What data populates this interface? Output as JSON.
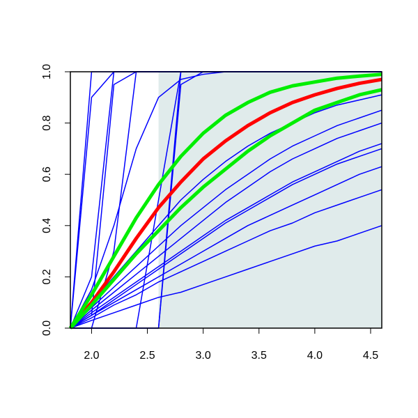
{
  "chart_data": {
    "type": "line",
    "x": [
      1.81,
      2.0,
      2.2,
      2.4,
      2.6,
      2.8,
      3.0,
      3.2,
      3.4,
      3.6,
      3.8,
      4.0,
      4.2,
      4.4,
      4.6
    ],
    "xlim": [
      1.81,
      4.6
    ],
    "ylim": [
      0,
      1
    ],
    "xticks": [
      {
        "value": 2,
        "label": "2.0"
      },
      2.5,
      {
        "value": 3,
        "label": "3.0"
      },
      3.5,
      {
        "value": 4,
        "label": "4.0"
      },
      4.5
    ],
    "yticks": [
      {
        "value": 0,
        "label": "0.0"
      },
      0.2,
      0.4,
      0.6,
      0.8,
      {
        "value": 1,
        "label": "1.0"
      }
    ],
    "shade": {
      "xlim": [
        2.6,
        4.6
      ],
      "color": "#e0ebeb"
    },
    "series": [
      {
        "color": "#0000ff",
        "values": [
          0,
          1,
          1,
          1,
          1,
          1,
          1,
          1,
          1,
          1,
          1,
          1,
          1,
          1,
          1
        ]
      },
      {
        "color": "#0000ff",
        "values": [
          0,
          0.9,
          1,
          1,
          1,
          1,
          1,
          1,
          1,
          1,
          1,
          1,
          1,
          1,
          1
        ]
      },
      {
        "color": "#0000ff",
        "values": [
          0,
          0.2,
          1,
          1,
          1,
          1,
          1,
          1,
          1,
          1,
          1,
          1,
          1,
          1,
          1
        ]
      },
      {
        "color": "#0000ff",
        "values": [
          0,
          0.05,
          0.95,
          1,
          1,
          1,
          1,
          1,
          1,
          1,
          1,
          1,
          1,
          1,
          1
        ]
      },
      {
        "color": "#0000ff",
        "values": [
          0,
          0,
          0.3,
          1,
          1,
          1,
          1,
          1,
          1,
          1,
          1,
          1,
          1,
          1,
          1
        ]
      },
      {
        "color": "#0000ff",
        "values": [
          0,
          0,
          0,
          0,
          0,
          1,
          1,
          1,
          1,
          1,
          1,
          1,
          1,
          1,
          1
        ]
      },
      {
        "color": "#0000ff",
        "values": [
          0,
          0,
          0,
          0,
          0,
          0.95,
          1,
          1,
          1,
          1,
          1,
          1,
          1,
          1,
          1
        ]
      },
      {
        "color": "#0000ff",
        "values": [
          0,
          0,
          0,
          0,
          0.5,
          1,
          1,
          1,
          1,
          1,
          1,
          1,
          1,
          1,
          1
        ]
      },
      {
        "color": "#0000ff",
        "values": [
          0,
          0.15,
          0.4,
          0.7,
          0.9,
          0.97,
          0.99,
          1,
          1,
          1,
          1,
          1,
          1,
          1,
          1
        ]
      },
      {
        "color": "#0000ff",
        "values": [
          0,
          0.08,
          0.16,
          0.24,
          0.32,
          0.4,
          0.47,
          0.54,
          0.6,
          0.66,
          0.71,
          0.75,
          0.79,
          0.82,
          0.85
        ]
      },
      {
        "color": "#0000ff",
        "values": [
          0,
          0.06,
          0.12,
          0.18,
          0.24,
          0.3,
          0.36,
          0.42,
          0.47,
          0.52,
          0.57,
          0.61,
          0.65,
          0.69,
          0.72
        ]
      },
      {
        "color": "#0000ff",
        "values": [
          0,
          0.05,
          0.1,
          0.15,
          0.2,
          0.25,
          0.3,
          0.35,
          0.4,
          0.44,
          0.48,
          0.52,
          0.56,
          0.6,
          0.63
        ]
      },
      {
        "color": "#0000ff",
        "values": [
          0,
          0.03,
          0.06,
          0.09,
          0.12,
          0.14,
          0.17,
          0.2,
          0.23,
          0.26,
          0.29,
          0.32,
          0.34,
          0.37,
          0.4
        ]
      },
      {
        "color": "#0000ff",
        "values": [
          0,
          0.04,
          0.09,
          0.13,
          0.18,
          0.22,
          0.26,
          0.3,
          0.34,
          0.38,
          0.41,
          0.45,
          0.48,
          0.51,
          0.54
        ]
      },
      {
        "color": "#0000ff",
        "values": [
          0,
          0.1,
          0.2,
          0.3,
          0.4,
          0.5,
          0.58,
          0.65,
          0.71,
          0.76,
          0.8,
          0.84,
          0.87,
          0.89,
          0.91
        ]
      },
      {
        "color": "#0000ff",
        "values": [
          0,
          0.07,
          0.14,
          0.21,
          0.28,
          0.35,
          0.42,
          0.49,
          0.55,
          0.61,
          0.66,
          0.7,
          0.74,
          0.77,
          0.8
        ]
      },
      {
        "color": "#0000ff",
        "values": [
          0,
          0.05,
          0.11,
          0.17,
          0.23,
          0.29,
          0.35,
          0.41,
          0.46,
          0.51,
          0.56,
          0.6,
          0.64,
          0.67,
          0.7
        ]
      },
      {
        "color": "#ff0000",
        "width": 5,
        "values": [
          0,
          0.1,
          0.22,
          0.35,
          0.47,
          0.57,
          0.66,
          0.73,
          0.79,
          0.84,
          0.88,
          0.91,
          0.935,
          0.955,
          0.97
        ]
      },
      {
        "color": "#00ee00",
        "width": 5,
        "values": [
          0,
          0.13,
          0.28,
          0.43,
          0.56,
          0.67,
          0.76,
          0.83,
          0.88,
          0.92,
          0.945,
          0.96,
          0.975,
          0.983,
          0.99
        ]
      },
      {
        "color": "#00ee00",
        "width": 5,
        "values": [
          0,
          0.09,
          0.19,
          0.29,
          0.38,
          0.47,
          0.55,
          0.62,
          0.69,
          0.75,
          0.8,
          0.85,
          0.88,
          0.91,
          0.93
        ]
      }
    ]
  }
}
